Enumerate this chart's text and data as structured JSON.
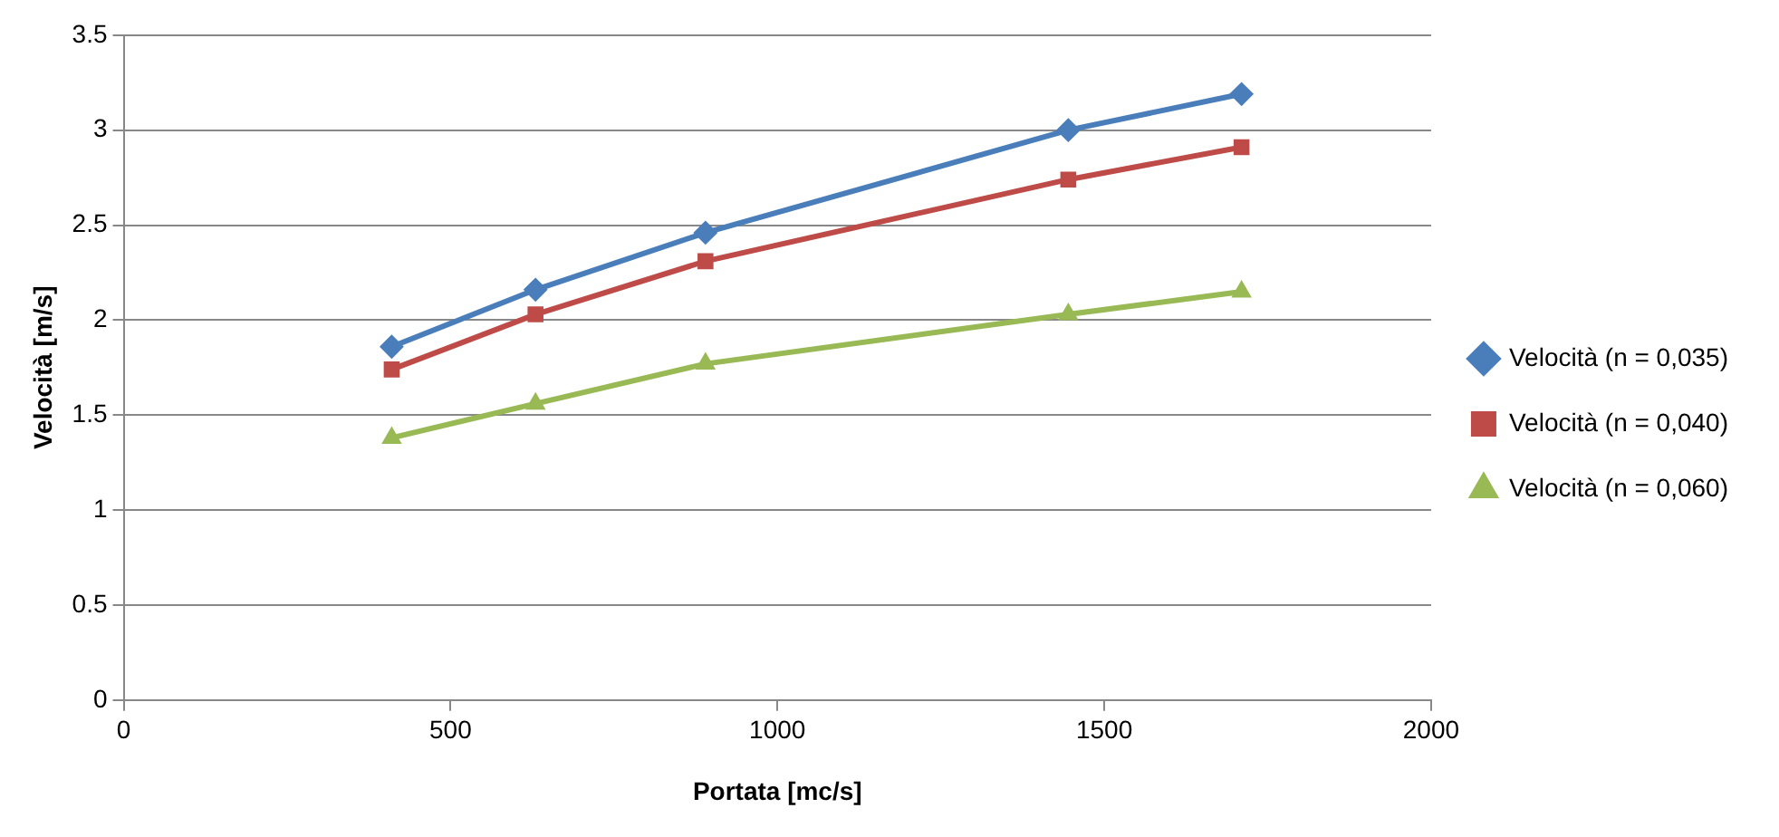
{
  "chart_data": {
    "type": "line",
    "xlabel": "Portata [mc/s]",
    "ylabel": "Velocità [m/s]",
    "x": [
      410,
      630,
      890,
      1445,
      1710
    ],
    "xlim": [
      0,
      2000
    ],
    "xticks": [
      0,
      500,
      1000,
      1500,
      2000
    ],
    "ylim": [
      0,
      3.5
    ],
    "yticks": [
      0,
      0.5,
      1,
      1.5,
      2,
      2.5,
      3,
      3.5
    ],
    "grid": "y",
    "legend": "right",
    "series": [
      {
        "name": "Velocità (n = 0,035)",
        "color": "#4a7ebb",
        "marker": "diamond",
        "values": [
          1.86,
          2.16,
          2.46,
          3.0,
          3.19
        ]
      },
      {
        "name": "Velocità (n = 0,040)",
        "color": "#be4b48",
        "marker": "square",
        "values": [
          1.74,
          2.03,
          2.31,
          2.74,
          2.91
        ]
      },
      {
        "name": "Velocità (n = 0,060)",
        "color": "#98b954",
        "marker": "triangle",
        "values": [
          1.38,
          1.56,
          1.77,
          2.03,
          2.15
        ]
      }
    ]
  }
}
